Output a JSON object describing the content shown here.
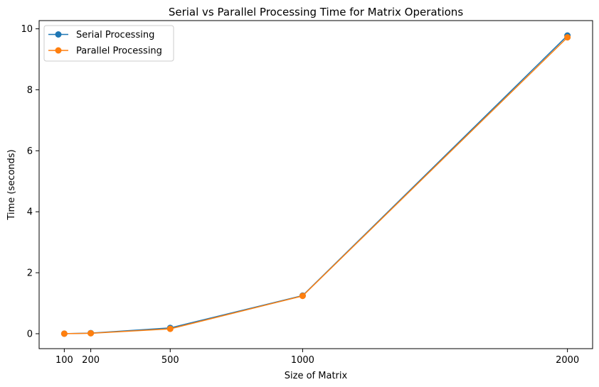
{
  "chart_data": {
    "type": "line",
    "title": "Serial vs Parallel Processing Time for Matrix Operations",
    "xlabel": "Size of Matrix",
    "ylabel": "Time (seconds)",
    "x": [
      100,
      200,
      500,
      1000,
      2000
    ],
    "xticks": [
      100,
      200,
      500,
      1000,
      2000
    ],
    "yticks": [
      0,
      2,
      4,
      6,
      8,
      10
    ],
    "xlim": [
      5,
      2095
    ],
    "ylim": [
      -0.49,
      10.27
    ],
    "grid": false,
    "legend_position": "top-left",
    "series": [
      {
        "name": "Serial Processing",
        "color": "#1f77b4",
        "values": [
          0.002,
          0.02,
          0.19,
          1.25,
          9.78
        ]
      },
      {
        "name": "Parallel Processing",
        "color": "#ff7f0e",
        "values": [
          0.001,
          0.015,
          0.16,
          1.24,
          9.72
        ]
      }
    ]
  }
}
